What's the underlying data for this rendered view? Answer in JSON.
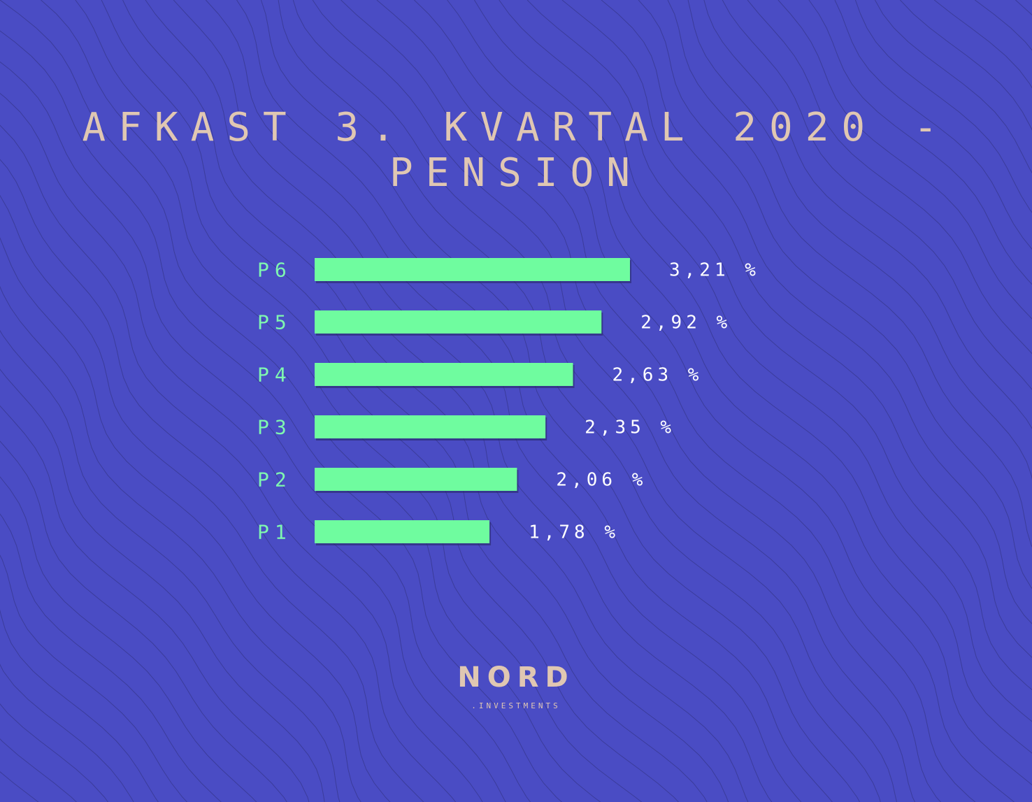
{
  "title": "AFKAST 3. KVARTAL 2020 - PENSION",
  "brand": {
    "name": "NORD",
    "sub": ".INVESTMENTS"
  },
  "colors": {
    "background": "#4a4cc4",
    "bar": "#6ffc9f",
    "category_label": "#7ff7b0",
    "value_label": "#ffffff",
    "title": "#e0c7b2",
    "contour": "#2f2f7a"
  },
  "chart_data": {
    "type": "bar",
    "orientation": "horizontal",
    "title": "AFKAST 3. KVARTAL 2020 - PENSION",
    "categories": [
      "P6",
      "P5",
      "P4",
      "P3",
      "P2",
      "P1"
    ],
    "values": [
      3.21,
      2.92,
      2.63,
      2.35,
      2.06,
      1.78
    ],
    "value_labels": [
      "3,21 %",
      "2,92 %",
      "2,63 %",
      "2,35 %",
      "2,06 %",
      "1,78 %"
    ],
    "xlabel": "",
    "ylabel": "",
    "xlim": [
      0,
      3.21
    ],
    "grid": false,
    "legend": "none"
  }
}
